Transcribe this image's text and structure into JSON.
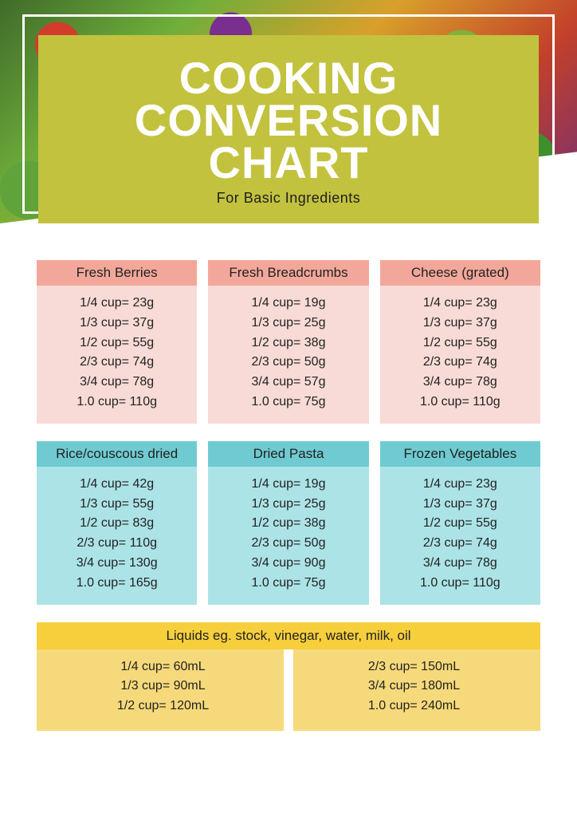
{
  "title_line1": "COOKING",
  "title_line2": "CONVERSION",
  "title_line3": "CHART",
  "subtitle": "For Basic Ingredients",
  "colors": {
    "title_block_bg": "#c2c23f",
    "title_text": "#ffffff",
    "pink_header": "#f2a79a",
    "pink_body": "#f8dbd6",
    "teal_header": "#6fcbd1",
    "teal_body": "#ace3e7",
    "yellow_header": "#f7cf3c",
    "yellow_body": "#f6d97a",
    "page_bg": "#ffffff",
    "text": "#222222"
  },
  "row1": [
    {
      "title": "Fresh Berries",
      "lines": [
        "1/4 cup= 23g",
        "1/3 cup= 37g",
        "1/2 cup= 55g",
        "2/3 cup= 74g",
        "3/4 cup= 78g",
        "1.0 cup= 110g"
      ]
    },
    {
      "title": "Fresh Breadcrumbs",
      "lines": [
        "1/4 cup= 19g",
        "1/3 cup= 25g",
        "1/2 cup= 38g",
        "2/3 cup= 50g",
        "3/4 cup= 57g",
        "1.0 cup= 75g"
      ]
    },
    {
      "title": "Cheese (grated)",
      "lines": [
        "1/4 cup= 23g",
        "1/3 cup= 37g",
        "1/2 cup= 55g",
        "2/3 cup= 74g",
        "3/4 cup= 78g",
        "1.0 cup= 110g"
      ]
    }
  ],
  "row2": [
    {
      "title": "Rice/couscous dried",
      "lines": [
        "1/4 cup= 42g",
        "1/3 cup= 55g",
        "1/2 cup= 83g",
        "2/3 cup= 110g",
        "3/4 cup= 130g",
        "1.0 cup= 165g"
      ]
    },
    {
      "title": "Dried Pasta",
      "lines": [
        "1/4 cup= 19g",
        "1/3 cup= 25g",
        "1/2 cup= 38g",
        "2/3 cup= 50g",
        "3/4 cup= 90g",
        "1.0 cup= 75g"
      ]
    },
    {
      "title": "Frozen Vegetables",
      "lines": [
        "1/4 cup= 23g",
        "1/3 cup= 37g",
        "1/2 cup= 55g",
        "2/3 cup= 74g",
        "3/4 cup= 78g",
        "1.0 cup= 110g"
      ]
    }
  ],
  "liquids": {
    "title": "Liquids eg. stock, vinegar, water, milk, oil",
    "left": [
      "1/4 cup= 60mL",
      "1/3 cup= 90mL",
      "1/2 cup= 120mL"
    ],
    "right": [
      "2/3 cup= 150mL",
      "3/4 cup= 180mL",
      "1.0 cup= 240mL"
    ]
  }
}
